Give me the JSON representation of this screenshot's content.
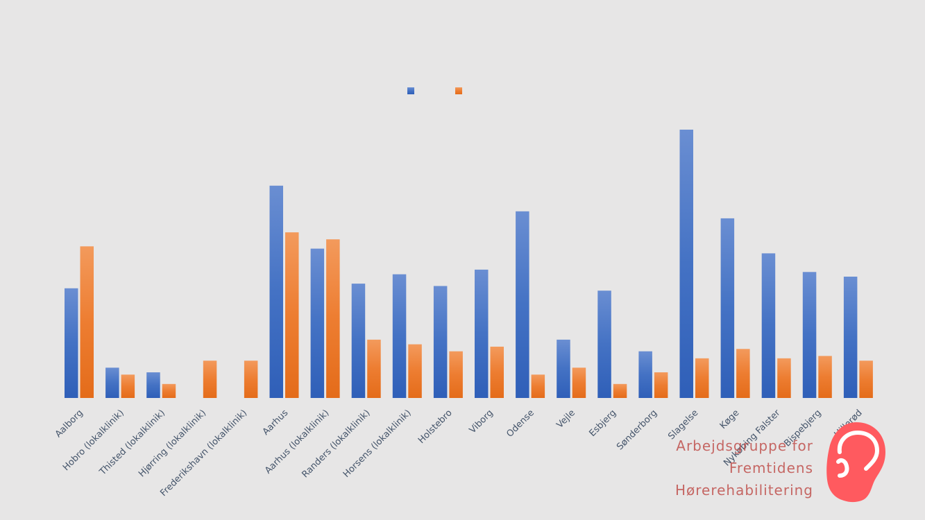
{
  "chart_data": {
    "type": "bar",
    "title": "",
    "xlabel": "",
    "ylabel": "",
    "grid": false,
    "legend_position": "top-center",
    "ylim": [
      0,
      115
    ],
    "categories": [
      "Aalborg",
      "Hobro (lokalklinik)",
      "Thisted (lokalklinik)",
      "Hjørring (lokalklinik)",
      "Frederikshavn (lokalklinik)",
      "Aarhus",
      "Aarhus (lokalklinik)",
      "Randers (lokalklinik)",
      "Horsens (lokalklinik)",
      "Holstebro",
      "Viborg",
      "Odense",
      "Vejle",
      "Esbjerg",
      "Sønderborg",
      "Slagelse",
      "Køge",
      "Nykøbing Falster",
      "Bispebjerg",
      "Hillerød"
    ],
    "series": [
      {
        "color": "#4472c4",
        "values": [
          47,
          13,
          11,
          0,
          0,
          91,
          64,
          49,
          53,
          48,
          55,
          80,
          25,
          46,
          20,
          115,
          77,
          62,
          54,
          52
        ]
      },
      {
        "color": "#ed7d31",
        "values": [
          65,
          10,
          6,
          16,
          16,
          71,
          68,
          25,
          23,
          20,
          22,
          10,
          13,
          6,
          11,
          17,
          21,
          17,
          18,
          16
        ]
      }
    ]
  },
  "branding": {
    "line1": "Arbejdsgruppe for",
    "line2": "Fremtidens",
    "line3": "Hørerehabilitering",
    "logo_icon": "ear-icon",
    "logo_color": "#ff5a5f"
  }
}
